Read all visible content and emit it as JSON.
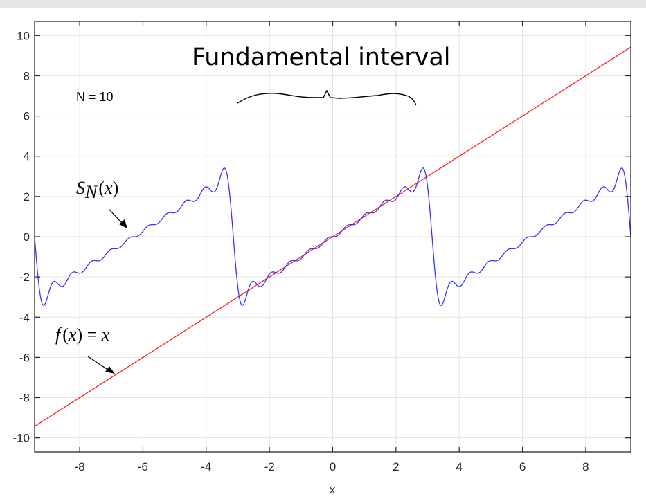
{
  "chart_data": {
    "type": "line",
    "title": "Fundamental interval",
    "xlabel": "x",
    "ylabel": "",
    "xlim": [
      -9.4248,
      9.4248
    ],
    "ylim": [
      -10.7,
      10.7
    ],
    "xticks": [
      -8,
      -6,
      -4,
      -2,
      0,
      2,
      4,
      6,
      8
    ],
    "yticks": [
      -10,
      -8,
      -6,
      -4,
      -2,
      0,
      2,
      4,
      6,
      8,
      10
    ],
    "grid": true,
    "legend": null,
    "series": [
      {
        "name": "f(x) = x",
        "color": "#ff2020",
        "kind": "linear",
        "x": [
          -9.4248,
          9.4248
        ],
        "y": [
          -9.4248,
          9.4248
        ]
      },
      {
        "name": "S_N(x)",
        "color": "#3333ff",
        "kind": "fourier_sawtooth",
        "N": 10,
        "formula": "sum_{n=1..N} 2(-1)^(n+1) sin(n x)/n",
        "sample_x": [
          -9.42,
          -8,
          -6,
          -4,
          -3.45,
          -2.8,
          -2,
          0,
          2,
          2.8,
          3.45,
          4,
          6,
          8,
          9.42
        ],
        "sample_y": [
          0,
          -1.8,
          0.3,
          2.3,
          3.4,
          -3.4,
          -1.9,
          0,
          1.9,
          3.4,
          -3.4,
          -2.3,
          -0.3,
          1.8,
          0
        ]
      }
    ],
    "annotations": [
      {
        "text": "N = 10",
        "x": -8.2,
        "y": 6.9
      },
      {
        "text": "S_N(x)",
        "x": -7.4,
        "y": 2.5,
        "arrow_to": [
          -6.5,
          0.4
        ]
      },
      {
        "text": "f(x) = x",
        "x": -8.6,
        "y": -4.9,
        "arrow_to": [
          -6.8,
          -6.8
        ]
      },
      {
        "text": "brace",
        "from": [
          -3.0,
          6.6
        ],
        "to": [
          2.6,
          6.5
        ]
      }
    ]
  },
  "labels": {
    "title": "Fundamental interval",
    "xlabel": "x",
    "n_label": "N = 10",
    "sn_main": "S",
    "sn_sub": "N",
    "sn_arg": "(x)",
    "fx_f": "f",
    "fx_rest": "(x) = x"
  }
}
